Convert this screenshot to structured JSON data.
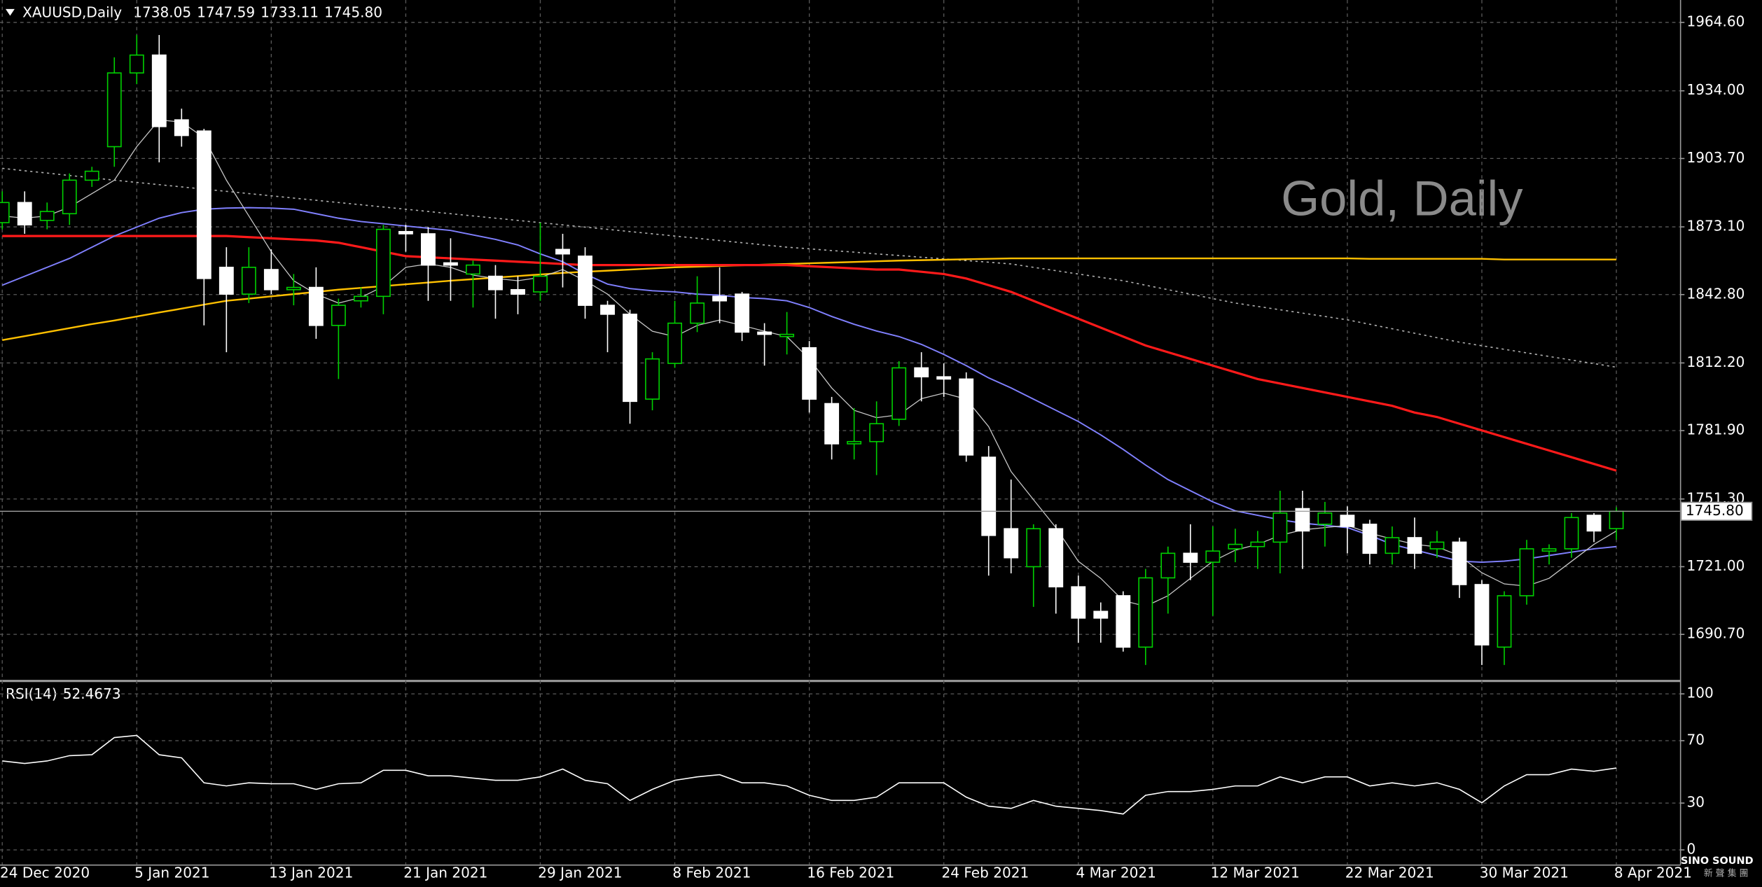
{
  "chart_data": [
    {
      "type": "candlestick",
      "title": "Gold, Daily",
      "symbol": "XAUUSD,Daily",
      "ohlc_labels": [
        "1738.05",
        "1747.59",
        "1733.11",
        "1745.80"
      ],
      "categories": [
        "24 Dec 2020",
        null,
        null,
        null,
        null,
        null,
        "5 Jan 2021",
        null,
        null,
        null,
        null,
        null,
        "13 Jan 2021",
        null,
        null,
        null,
        null,
        null,
        "21 Jan 2021",
        null,
        null,
        null,
        null,
        null,
        "29 Jan 2021",
        null,
        null,
        null,
        null,
        null,
        "8 Feb 2021",
        null,
        null,
        null,
        null,
        null,
        "16 Feb 2021",
        null,
        null,
        null,
        null,
        null,
        "24 Feb 2021",
        null,
        null,
        null,
        null,
        null,
        "4 Mar 2021",
        null,
        null,
        null,
        null,
        null,
        "12 Mar 2021",
        null,
        null,
        null,
        null,
        null,
        "22 Mar 2021",
        null,
        null,
        null,
        null,
        null,
        "30 Mar 2021",
        null,
        null,
        null,
        null,
        null,
        "8 Apr 2021"
      ],
      "open": [
        1875,
        1884,
        1876,
        1879,
        1894,
        1909,
        1942,
        1950,
        1921,
        1916,
        1855,
        1843,
        1854,
        1845,
        1846,
        1829,
        1840,
        1842,
        1871,
        1870,
        1857,
        1852,
        1851,
        1845,
        1844,
        1863,
        1860,
        1838,
        1834,
        1796,
        1812,
        1830,
        1842,
        1843,
        1826,
        1824,
        1819,
        1794,
        1776,
        1777,
        1787,
        1810,
        1806,
        1805,
        1770,
        1738,
        1721,
        1738,
        1712,
        1701,
        1708,
        1685,
        1716,
        1727,
        1723,
        1729,
        1730,
        1732,
        1747,
        1740,
        1744,
        1740,
        1727,
        1734,
        1729,
        1732,
        1713,
        1685,
        1708,
        1728,
        1729,
        1744,
        1738.05
      ],
      "high": [
        1889,
        1889,
        1884,
        1897,
        1900,
        1949,
        1959,
        1959,
        1926,
        1917,
        1864,
        1864,
        1863,
        1852,
        1855,
        1841,
        1846,
        1874,
        1874,
        1873,
        1868,
        1858,
        1856,
        1851,
        1875,
        1870,
        1864,
        1840,
        1836,
        1817,
        1840,
        1851,
        1855,
        1844,
        1830,
        1835,
        1822,
        1797,
        1792,
        1795,
        1813,
        1817,
        1812,
        1808,
        1775,
        1760,
        1740,
        1740,
        1717,
        1705,
        1710,
        1720,
        1730,
        1740,
        1739,
        1738,
        1737,
        1755,
        1755,
        1750,
        1748,
        1742,
        1739,
        1743,
        1737,
        1734,
        1715,
        1710,
        1733,
        1731,
        1745,
        1745,
        1747.59
      ],
      "low": [
        1872,
        1870,
        1872,
        1874,
        1891,
        1900,
        1937,
        1902,
        1909,
        1829,
        1817,
        1839,
        1843,
        1838,
        1823,
        1805,
        1837,
        1834,
        1862,
        1840,
        1840,
        1837,
        1832,
        1834,
        1840,
        1846,
        1832,
        1817,
        1785,
        1791,
        1810,
        1826,
        1830,
        1822,
        1811,
        1816,
        1790,
        1769,
        1769,
        1762,
        1784,
        1795,
        1797,
        1768,
        1717,
        1718,
        1703,
        1700,
        1687,
        1687,
        1683,
        1677,
        1700,
        1715,
        1699,
        1723,
        1720,
        1718,
        1720,
        1730,
        1727,
        1722,
        1722,
        1720,
        1725,
        1707,
        1677,
        1677,
        1704,
        1722,
        1725,
        1732,
        1733.11
      ],
      "close": [
        1884,
        1874,
        1880,
        1894,
        1898,
        1942,
        1950,
        1918,
        1914,
        1850,
        1843,
        1855,
        1845,
        1846,
        1829,
        1838,
        1842,
        1872,
        1870,
        1856,
        1856,
        1856,
        1845,
        1843,
        1851,
        1861,
        1838,
        1834,
        1795,
        1814,
        1830,
        1839,
        1840,
        1826,
        1825,
        1825,
        1796,
        1776,
        1777,
        1785,
        1810,
        1806,
        1805,
        1771,
        1735,
        1725,
        1738,
        1712,
        1698,
        1698,
        1685,
        1716,
        1727,
        1723,
        1728,
        1731,
        1732,
        1745,
        1737,
        1745,
        1739,
        1727,
        1734,
        1727,
        1732,
        1713,
        1686,
        1708,
        1729,
        1729,
        1743,
        1737,
        1745.8
      ],
      "series": [
        {
          "color": "#b0b0b0",
          "dash": "2 3",
          "width": 1,
          "values": [
            1899.3,
            1898.2,
            1897.2,
            1896.1,
            1895.1,
            1894,
            1893,
            1892,
            1891,
            1890,
            1889,
            1888,
            1887,
            1886,
            1885,
            1884,
            1883,
            1882,
            1881,
            1880,
            1879,
            1878,
            1877,
            1876,
            1875,
            1874,
            1873,
            1872,
            1871,
            1870,
            1869,
            1868,
            1867,
            1866,
            1865,
            1864,
            1863.3,
            1862.5,
            1861.8,
            1861,
            1860.3,
            1859.5,
            1858.8,
            1858,
            1857.3,
            1856.5,
            1855,
            1853.5,
            1852,
            1850.5,
            1849,
            1847,
            1845,
            1843,
            1841,
            1839,
            1837.5,
            1836,
            1834.5,
            1833,
            1831.5,
            1829.5,
            1827.5,
            1825.5,
            1823.5,
            1821.5,
            1819.9,
            1818.3,
            1816.7,
            1815.1,
            1813.5,
            1811.9,
            1810.3
          ]
        },
        {
          "color": "#ffc000",
          "width": 1.5,
          "values": [
            1822.4,
            1824.2,
            1826,
            1827.8,
            1829.6,
            1831.2,
            1833,
            1834.8,
            1836.5,
            1838.3,
            1840,
            1841,
            1842,
            1843,
            1844,
            1845,
            1845.8,
            1846.6,
            1847.4,
            1848.2,
            1849,
            1849.7,
            1850.4,
            1851.1,
            1851.8,
            1852.5,
            1853,
            1853.5,
            1854,
            1854.5,
            1855,
            1855.3,
            1855.6,
            1855.9,
            1856.2,
            1856.5,
            1856.8,
            1857.1,
            1857.4,
            1857.7,
            1858,
            1858.2,
            1858.4,
            1858.6,
            1858.8,
            1859,
            1859,
            1859,
            1859,
            1859,
            1859,
            1859,
            1859,
            1859,
            1859,
            1859,
            1859,
            1859,
            1859,
            1859,
            1859,
            1858.8,
            1858.8,
            1858.8,
            1858.8,
            1858.8,
            1858.8,
            1858.5,
            1858.5,
            1858.5,
            1858.5,
            1858.5,
            1858.5
          ]
        },
        {
          "color": "#ff1a1a",
          "width": 2,
          "values": [
            1869,
            1869,
            1869,
            1869,
            1869,
            1869,
            1869,
            1869,
            1869,
            1869,
            1869,
            1868.5,
            1868,
            1867.5,
            1867,
            1866,
            1864,
            1862,
            1860,
            1859.5,
            1859,
            1858.5,
            1858,
            1857.5,
            1857,
            1856.5,
            1856,
            1856,
            1856,
            1856,
            1856,
            1856,
            1856,
            1856,
            1856,
            1856,
            1855.5,
            1855,
            1854.5,
            1854,
            1854,
            1853,
            1852,
            1850,
            1847,
            1844,
            1840,
            1836,
            1832,
            1828,
            1824,
            1820,
            1817,
            1814,
            1811,
            1808,
            1805,
            1803,
            1801,
            1799,
            1797,
            1795,
            1793,
            1790,
            1788,
            1785,
            1782,
            1779,
            1776,
            1773,
            1770,
            1767,
            1764
          ]
        },
        {
          "color": "#8080ff",
          "width": 1.2,
          "values": [
            1847,
            1851,
            1855,
            1859,
            1864,
            1869,
            1873,
            1877,
            1879.5,
            1881,
            1881.5,
            1881.7,
            1881.5,
            1881,
            1879,
            1877,
            1875.5,
            1874.5,
            1873.5,
            1872.5,
            1871.5,
            1869.5,
            1867.5,
            1865,
            1861,
            1857.5,
            1852,
            1847.5,
            1845.5,
            1844.5,
            1844,
            1843,
            1842.5,
            1841.5,
            1841,
            1840,
            1837,
            1833,
            1829.5,
            1826.5,
            1824,
            1820.5,
            1816,
            1811,
            1805.5,
            1801,
            1796,
            1791,
            1786,
            1780,
            1773.5,
            1766.5,
            1760,
            1755,
            1750,
            1746,
            1744,
            1742,
            1740.5,
            1739.5,
            1738.5,
            1735,
            1731,
            1728.5,
            1726,
            1723.5,
            1723,
            1723.5,
            1724.5,
            1726,
            1727.5,
            1729,
            1730
          ]
        },
        {
          "color": "#c8c8c8",
          "width": 0.8,
          "values": [
            1878,
            1877,
            1878,
            1882,
            1888,
            1894,
            1909,
            1921,
            1920,
            1913,
            1894,
            1878,
            1862,
            1849,
            1843,
            1839,
            1841.5,
            1846.5,
            1855,
            1856.5,
            1855,
            1851.5,
            1850,
            1849,
            1850.5,
            1854,
            1849,
            1843,
            1834,
            1826.4,
            1824,
            1829,
            1831.4,
            1829,
            1826.4,
            1824,
            1814,
            1801,
            1791,
            1787.7,
            1789,
            1796.2,
            1798.7,
            1796,
            1783.7,
            1763.6,
            1751,
            1738.5,
            1723.4,
            1715.8,
            1705.8,
            1703.3,
            1708,
            1715.8,
            1723.4,
            1728.4,
            1731,
            1735,
            1737.5,
            1738.5,
            1739.5,
            1736,
            1733.4,
            1731,
            1729.9,
            1725.9,
            1718.3,
            1713.3,
            1712.3,
            1715.8,
            1723.4,
            1731,
            1737
          ]
        }
      ],
      "up_color": "#00d000",
      "down_color": "#ffffff",
      "ylim": [
        1670.1,
        1974.65
      ],
      "yticks": [
        {
          "value": 1690.7,
          "label": "1690.70"
        },
        {
          "value": 1721,
          "label": "1721.00"
        },
        {
          "value": 1751.3,
          "label": "1751.30"
        },
        {
          "value": 1781.9,
          "label": "1781.90"
        },
        {
          "value": 1812.2,
          "label": "1812.20"
        },
        {
          "value": 1842.8,
          "label": "1842.80"
        },
        {
          "value": 1873.1,
          "label": "1873.10"
        },
        {
          "value": 1903.7,
          "label": "1903.70"
        },
        {
          "value": 1934,
          "label": "1934.00"
        },
        {
          "value": 1964.6,
          "label": "1964.60"
        }
      ],
      "last_price": {
        "value": 1745.8,
        "label": "1745.80"
      },
      "grid": true
    },
    {
      "type": "line",
      "title": "RSI(14)",
      "series": [
        {
          "color": "#ffffff",
          "width": 1,
          "values": [
            57,
            55.4,
            57,
            60.4,
            61,
            72,
            73.4,
            61,
            59,
            43,
            41,
            43,
            42.4,
            42.4,
            38.8,
            42.4,
            43,
            51,
            51,
            47.5,
            47.5,
            46,
            44.6,
            44.6,
            46.8,
            51.8,
            44.6,
            42.4,
            31.7,
            38.8,
            44.6,
            46.8,
            48.2,
            43,
            43,
            41,
            35,
            31.7,
            31.7,
            33.8,
            43,
            43,
            43,
            33.8,
            28,
            26.6,
            31.7,
            28,
            26.6,
            25.2,
            23,
            35,
            37.4,
            37.4,
            38.8,
            41,
            41,
            46.8,
            43,
            46.8,
            46.8,
            41,
            43,
            41,
            43,
            38.8,
            30.2,
            41,
            48.2,
            48.2,
            51.8,
            50.4,
            52.4673
          ]
        }
      ],
      "ylim": [
        -9.4,
        107.2
      ],
      "yticks": [
        0,
        30,
        70,
        100
      ],
      "grid": true
    }
  ],
  "logo": {
    "name": "SINO SOUND",
    "subtitle": "新 聲 集 團"
  }
}
